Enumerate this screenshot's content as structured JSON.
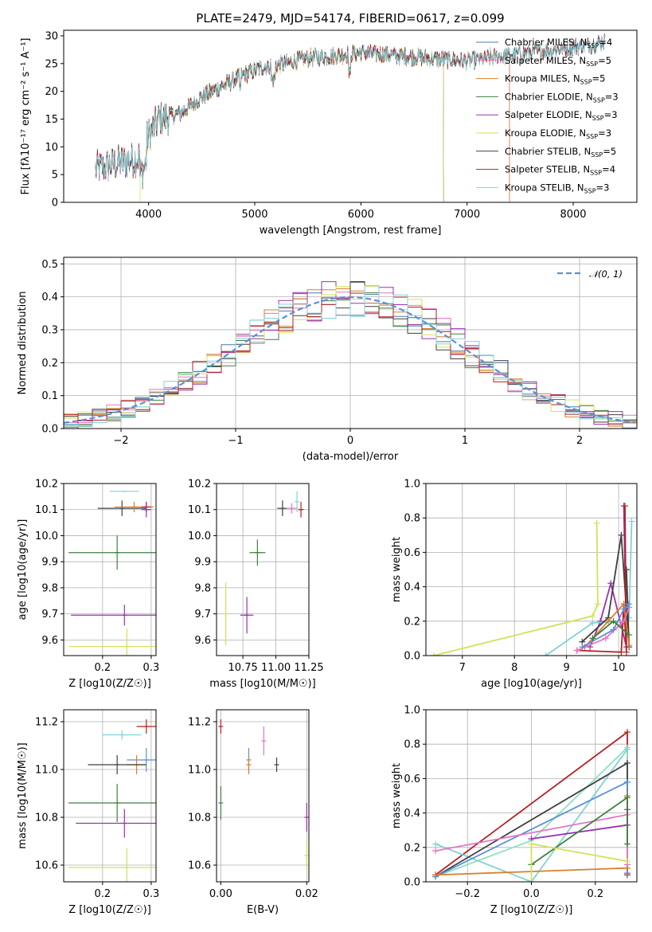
{
  "figure_title": "PLATE=2479, MJD=54174, FIBERID=0617, z=0.099",
  "chart_data": [
    {
      "id": "spectrum",
      "type": "line",
      "title": "PLATE=2479, MJD=54174, FIBERID=0617, z=0.099",
      "xlabel": "wavelength [Angstrom, rest frame]",
      "ylabel": "Flux [fλ10⁻¹⁷ erg cm⁻² s⁻¹ A⁻¹]",
      "xlim": [
        3200,
        8600
      ],
      "ylim": [
        0,
        31
      ],
      "xticks": [
        4000,
        5000,
        6000,
        7000,
        8000
      ],
      "yticks": [
        0,
        5,
        10,
        15,
        20,
        25,
        30
      ],
      "grid": false,
      "legend_position": "right",
      "continuum_x": [
        3500,
        3700,
        3900,
        4000,
        4100,
        4300,
        4500,
        4700,
        4900,
        5100,
        5300,
        5500,
        5800,
        6000,
        6300,
        6600,
        7000,
        7200,
        7400,
        7600,
        7800,
        8000,
        8200,
        8300
      ],
      "continuum_y": [
        6,
        7,
        8,
        12,
        15,
        16,
        19,
        21,
        23,
        24.5,
        25,
        26,
        26.5,
        27,
        26.5,
        26,
        25.5,
        26,
        26.5,
        27,
        27.5,
        28,
        28.5,
        29
      ],
      "series": [
        {
          "name": "Chabrier MILES, N_SSP=4",
          "label_main": "Chabrier MILES, N",
          "label_sub": "SSP",
          "label_tail": "=4",
          "color": "#4e79a7",
          "x_min": 3500,
          "x_max": 8300
        },
        {
          "name": "Salpeter MILES, N_SSP=5",
          "label_main": "Salpeter MILES, N",
          "label_sub": "SSP",
          "label_tail": "=5",
          "color": "#e377c2",
          "x_min": 3500,
          "x_max": 7400
        },
        {
          "name": "Kroupa MILES, N_SSP=5",
          "label_main": "Kroupa MILES, N",
          "label_sub": "SSP",
          "label_tail": "=5",
          "color": "#d97f2c",
          "x_min": 3500,
          "x_max": 7400
        },
        {
          "name": "Chabrier ELODIE, N_SSP=3",
          "label_main": "Chabrier ELODIE, N",
          "label_sub": "SSP",
          "label_tail": "=3",
          "color": "#3f7f3f",
          "x_min": 3500,
          "x_max": 6780
        },
        {
          "name": "Salpeter ELODIE, N_SSP=3",
          "label_main": "Salpeter ELODIE, N",
          "label_sub": "SSP",
          "label_tail": "=3",
          "color": "#9b30b0",
          "x_min": 3500,
          "x_max": 6780
        },
        {
          "name": "Kroupa ELODIE, N_SSP=3",
          "label_main": "Kroupa ELODIE, N",
          "label_sub": "SSP",
          "label_tail": "=3",
          "color": "#d4e157",
          "x_min": 3920,
          "x_max": 6780
        },
        {
          "name": "Chabrier STELIB, N_SSP=5",
          "label_main": "Chabrier STELIB, N",
          "label_sub": "SSP",
          "label_tail": "=5",
          "color": "#404040",
          "x_min": 3500,
          "x_max": 8300
        },
        {
          "name": "Salpeter STELIB, N_SSP=4",
          "label_main": "Salpeter STELIB, N",
          "label_sub": "SSP",
          "label_tail": "=4",
          "color": "#b22222",
          "x_min": 3500,
          "x_max": 8300
        },
        {
          "name": "Kroupa STELIB, N_SSP=3",
          "label_main": "Kroupa STELIB, N",
          "label_sub": "SSP",
          "label_tail": "=3",
          "color": "#7fd3d8",
          "x_min": 3500,
          "x_max": 8300
        }
      ]
    },
    {
      "id": "residuals",
      "type": "line",
      "xlabel": "(data-model)/error",
      "ylabel": "Normed distribution",
      "xlim": [
        -2.5,
        2.5
      ],
      "ylim": [
        0,
        0.52
      ],
      "xticks": [
        -2,
        -1,
        0,
        1,
        2
      ],
      "yticks": [
        0.0,
        0.1,
        0.2,
        0.3,
        0.4,
        0.5
      ],
      "grid": true,
      "legend_position": "top-right",
      "reference": {
        "name": "𝒩(0, 1)",
        "color": "#5b8fd9",
        "style": "dashed"
      },
      "histogram_colors": [
        "#4e79a7",
        "#e377c2",
        "#d97f2c",
        "#3f7f3f",
        "#9b30b0",
        "#d4e157",
        "#404040",
        "#b22222",
        "#7fd3d8"
      ],
      "bin_width": 0.125
    },
    {
      "id": "age_vs_z",
      "type": "scatter",
      "xlabel": "Z [log10(Z/Z☉)]",
      "ylabel": "age  [log10(age/yr)]",
      "xlim": [
        0.12,
        0.31
      ],
      "ylim": [
        9.54,
        10.2
      ],
      "xticks": [
        0.2,
        0.3
      ],
      "yticks": [
        9.6,
        9.7,
        9.8,
        9.9,
        10.0,
        10.1,
        10.2
      ],
      "grid": true,
      "points": [
        {
          "x": 0.245,
          "y": 10.17,
          "xerr": 0.03,
          "yerr": 0.0,
          "color": "#7fd3d8"
        },
        {
          "x": 0.24,
          "y": 10.105,
          "xerr": 0.05,
          "yerr": 0.03,
          "color": "#404040"
        },
        {
          "x": 0.265,
          "y": 10.11,
          "xerr": 0.04,
          "yerr": 0.02,
          "color": "#d97f2c"
        },
        {
          "x": 0.29,
          "y": 10.11,
          "xerr": 0.01,
          "yerr": 0.02,
          "color": "#b22222"
        },
        {
          "x": 0.29,
          "y": 10.1,
          "xerr": 0.01,
          "yerr": 0.03,
          "color": "#9b30b0"
        },
        {
          "x": 0.23,
          "y": 9.935,
          "xerr": 0.1,
          "yerr": 0.065,
          "color": "#3f7f3f"
        },
        {
          "x": 0.245,
          "y": 9.695,
          "xerr": 0.11,
          "yerr": 0.04,
          "color": "#9b30b0"
        },
        {
          "x": 0.25,
          "y": 9.575,
          "xerr": 0.12,
          "yerr": 0.07,
          "color": "#d4e157"
        }
      ]
    },
    {
      "id": "age_vs_mass",
      "type": "scatter",
      "xlabel": "mass [log10(M/M☉)]",
      "ylabel": "",
      "xlim": [
        10.55,
        11.25
      ],
      "ylim": [
        9.54,
        10.2
      ],
      "xticks": [
        10.75,
        11.0,
        11.25
      ],
      "yticks": [
        9.6,
        9.7,
        9.8,
        9.9,
        10.0,
        10.1,
        10.2
      ],
      "grid": true,
      "points": [
        {
          "x": 11.16,
          "y": 10.13,
          "xerr": 0.0,
          "yerr": 0.04,
          "color": "#7fd3d8"
        },
        {
          "x": 11.05,
          "y": 10.105,
          "xerr": 0.04,
          "yerr": 0.03,
          "color": "#404040"
        },
        {
          "x": 11.12,
          "y": 10.105,
          "xerr": 0.04,
          "yerr": 0.02,
          "color": "#e377c2"
        },
        {
          "x": 11.19,
          "y": 10.1,
          "xerr": 0.02,
          "yerr": 0.03,
          "color": "#b22222"
        },
        {
          "x": 10.86,
          "y": 9.935,
          "xerr": 0.06,
          "yerr": 0.05,
          "color": "#3f7f3f"
        },
        {
          "x": 10.78,
          "y": 9.695,
          "xerr": 0.05,
          "yerr": 0.07,
          "color": "#9b30b0"
        },
        {
          "x": 10.62,
          "y": 9.7,
          "xerr": 0.0,
          "yerr": 0.12,
          "color": "#d4e157"
        }
      ]
    },
    {
      "id": "weight_vs_age",
      "type": "line",
      "xlabel": "age  [log10(age/yr)]",
      "ylabel": "mass weight",
      "xlim": [
        6.3,
        10.35
      ],
      "ylim": [
        0,
        1
      ],
      "xticks": [
        7,
        8,
        9,
        10
      ],
      "yticks": [
        0.0,
        0.2,
        0.4,
        0.6,
        0.8,
        1.0
      ],
      "grid": true,
      "series": [
        {
          "color": "#d4e157",
          "x": [
            6.45,
            9.5,
            9.6,
            9.58
          ],
          "y": [
            0.0,
            0.23,
            0.3,
            0.77
          ]
        },
        {
          "color": "#9b30b0",
          "x": [
            9.45,
            9.65,
            9.85,
            10.15,
            10.1
          ],
          "y": [
            0.05,
            0.2,
            0.42,
            0.05,
            0.87
          ]
        },
        {
          "color": "#7fd3d8",
          "x": [
            8.6,
            9.5,
            10.1,
            10.2,
            10.25
          ],
          "y": [
            0.0,
            0.19,
            0.2,
            0.22,
            0.78
          ]
        },
        {
          "color": "#404040",
          "x": [
            9.3,
            9.8,
            10.05,
            10.2,
            10.15
          ],
          "y": [
            0.08,
            0.22,
            0.7,
            0.05,
            0.5
          ]
        },
        {
          "color": "#b22222",
          "x": [
            9.2,
            10.05,
            10.1,
            10.15,
            10.12
          ],
          "y": [
            0.03,
            0.02,
            0.3,
            0.02,
            0.87
          ]
        },
        {
          "color": "#d97f2c",
          "x": [
            9.35,
            9.8,
            10.1,
            10.2
          ],
          "y": [
            0.05,
            0.2,
            0.3,
            0.06
          ]
        },
        {
          "color": "#e377c2",
          "x": [
            9.2,
            9.75,
            10.1,
            10.2
          ],
          "y": [
            0.03,
            0.1,
            0.2,
            0.28
          ]
        },
        {
          "color": "#5b8fd9",
          "x": [
            9.3,
            9.9,
            10.1,
            10.2
          ],
          "y": [
            0.05,
            0.15,
            0.27,
            0.3
          ]
        },
        {
          "color": "#3f7f3f",
          "x": [
            9.5,
            9.9,
            10.2
          ],
          "y": [
            0.1,
            0.2,
            0.12
          ]
        }
      ]
    },
    {
      "id": "mass_vs_z",
      "type": "scatter",
      "xlabel": "Z [log10(Z/Z☉)]",
      "ylabel": "mass [log10(M/M☉)]",
      "xlim": [
        0.12,
        0.31
      ],
      "ylim": [
        10.53,
        11.25
      ],
      "xticks": [
        0.2,
        0.3
      ],
      "yticks": [
        10.6,
        10.8,
        11.0,
        11.2
      ],
      "grid": true,
      "points": [
        {
          "x": 0.29,
          "y": 11.18,
          "xerr": 0.02,
          "yerr": 0.03,
          "color": "#b22222"
        },
        {
          "x": 0.24,
          "y": 11.145,
          "xerr": 0.04,
          "yerr": 0.02,
          "color": "#7fd3d8"
        },
        {
          "x": 0.29,
          "y": 11.04,
          "xerr": 0.04,
          "yerr": 0.05,
          "color": "#5b8fd9"
        },
        {
          "x": 0.27,
          "y": 11.02,
          "xerr": 0.02,
          "yerr": 0.04,
          "color": "#d97f2c"
        },
        {
          "x": 0.23,
          "y": 11.02,
          "xerr": 0.06,
          "yerr": 0.04,
          "color": "#404040"
        },
        {
          "x": 0.23,
          "y": 10.86,
          "xerr": 0.1,
          "yerr": 0.08,
          "color": "#3f7f3f"
        },
        {
          "x": 0.245,
          "y": 10.775,
          "xerr": 0.1,
          "yerr": 0.06,
          "color": "#9b30b0"
        },
        {
          "x": 0.25,
          "y": 10.59,
          "xerr": 0.12,
          "yerr": 0.08,
          "color": "#d4e157"
        }
      ]
    },
    {
      "id": "mass_vs_ebv",
      "type": "scatter",
      "xlabel": "E(B-V)",
      "ylabel": "",
      "xlim": [
        -0.001,
        0.0205
      ],
      "ylim": [
        10.53,
        11.25
      ],
      "xticks": [
        0.0,
        0.02
      ],
      "yticks": [
        10.6,
        10.8,
        11.0,
        11.2
      ],
      "grid": true,
      "points": [
        {
          "x": 0.0,
          "y": 11.18,
          "yerr": 0.03,
          "color": "#b22222"
        },
        {
          "x": 0.0,
          "y": 10.86,
          "yerr": 0.07,
          "color": "#3f7f3f"
        },
        {
          "x": 0.0065,
          "y": 11.04,
          "yerr": 0.05,
          "color": "#5b8fd9"
        },
        {
          "x": 0.0065,
          "y": 11.02,
          "yerr": 0.04,
          "color": "#d97f2c"
        },
        {
          "x": 0.01,
          "y": 11.12,
          "yerr": 0.06,
          "color": "#e377c2"
        },
        {
          "x": 0.013,
          "y": 11.02,
          "yerr": 0.03,
          "color": "#404040"
        },
        {
          "x": 0.02,
          "y": 10.8,
          "yerr": 0.06,
          "color": "#9b30b0"
        },
        {
          "x": 0.02,
          "y": 10.64,
          "yerr": 0.06,
          "color": "#d4e157"
        }
      ]
    },
    {
      "id": "weight_vs_z",
      "type": "line",
      "xlabel": "Z [log10(Z/Z☉)]",
      "ylabel": "mass weight",
      "xlim": [
        -0.33,
        0.33
      ],
      "ylim": [
        0,
        1
      ],
      "xticks": [
        -0.2,
        0.0,
        0.2
      ],
      "yticks": [
        0.0,
        0.2,
        0.4,
        0.6,
        0.8,
        1.0
      ],
      "grid": true,
      "series": [
        {
          "color": "#b22222",
          "x": [
            -0.3,
            0.3,
            0.3
          ],
          "y": [
            0.04,
            0.87,
            0.04
          ]
        },
        {
          "color": "#8ee0c4",
          "x": [
            -0.3,
            0.0,
            0.3,
            0.3
          ],
          "y": [
            0.03,
            0.24,
            0.78,
            0.05
          ]
        },
        {
          "color": "#7fd3d8",
          "x": [
            -0.3,
            0.0,
            0.3
          ],
          "y": [
            0.22,
            0.0,
            0.77
          ]
        },
        {
          "color": "#404040",
          "x": [
            -0.3,
            0.3,
            0.3
          ],
          "y": [
            0.03,
            0.69,
            0.05
          ]
        },
        {
          "color": "#5b8fd9",
          "x": [
            -0.3,
            0.3,
            0.3
          ],
          "y": [
            0.03,
            0.58,
            0.05
          ]
        },
        {
          "color": "#d97f2c",
          "x": [
            -0.3,
            0.3,
            0.3
          ],
          "y": [
            0.04,
            0.08,
            0.5
          ]
        },
        {
          "color": "#e377c2",
          "x": [
            -0.3,
            0.3,
            0.3
          ],
          "y": [
            0.18,
            0.39,
            0.1
          ]
        },
        {
          "color": "#9b30b0",
          "x": [
            0.0,
            0.3,
            0.3
          ],
          "y": [
            0.25,
            0.33,
            0.42
          ]
        },
        {
          "color": "#3f7f3f",
          "x": [
            0.0,
            0.3,
            0.3
          ],
          "y": [
            0.1,
            0.49,
            0.22
          ]
        },
        {
          "color": "#d4e157",
          "x": [
            0.0,
            0.0,
            0.3
          ],
          "y": [
            0.0,
            0.22,
            0.12
          ]
        }
      ]
    }
  ]
}
